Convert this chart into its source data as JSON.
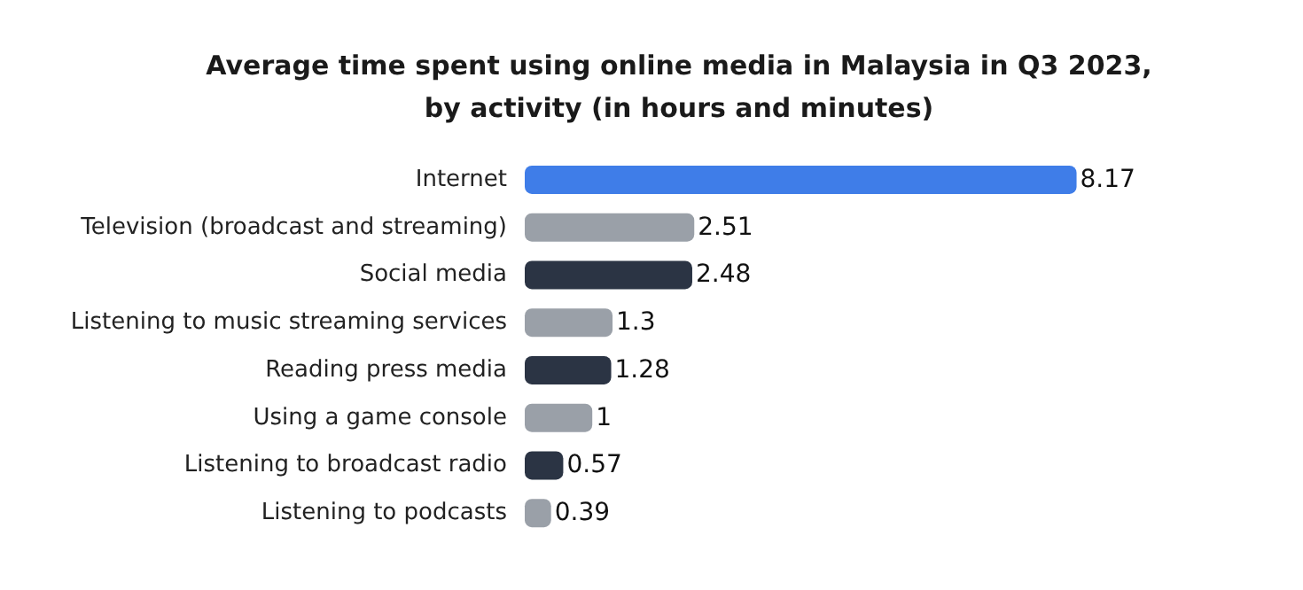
{
  "chart_data": {
    "type": "bar",
    "orientation": "horizontal",
    "title": "Average time spent using online media in Malaysia in Q3 2023,\nby activity (in hours and minutes)",
    "categories": [
      "Internet",
      "Television (broadcast and streaming)",
      "Social media",
      "Listening to music streaming services",
      "Reading press media",
      "Using a game console",
      "Listening to broadcast radio",
      "Listening to podcasts"
    ],
    "values": [
      8.17,
      2.51,
      2.48,
      1.3,
      1.28,
      1,
      0.57,
      0.39
    ],
    "colors": [
      "#3f7de8",
      "#9aa0a8",
      "#2b3444",
      "#9aa0a8",
      "#2b3444",
      "#9aa0a8",
      "#2b3444",
      "#9aa0a8"
    ],
    "data_labels": true
  }
}
